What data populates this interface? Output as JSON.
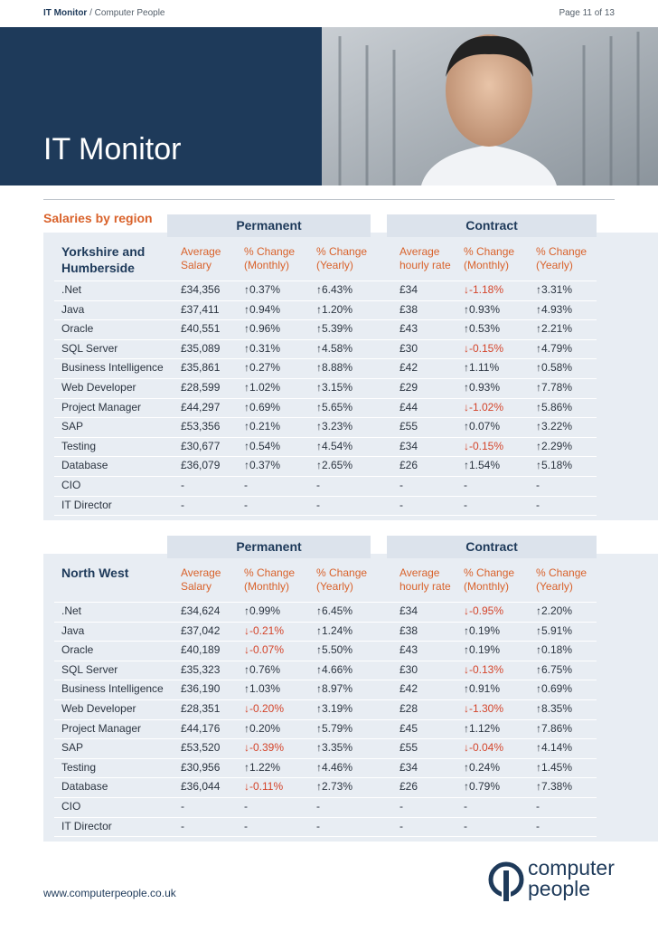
{
  "header": {
    "brand": "IT Monitor",
    "subbrand": "/ Computer People",
    "page": "Page 11 of 13"
  },
  "banner": {
    "title": "IT Monitor"
  },
  "section_title": "Salaries by region",
  "tables": [
    {
      "region": "Yorkshire and Humberside",
      "groups": [
        "Permanent",
        "Contract"
      ],
      "columns": [
        "Average Salary",
        "% Change (Monthly)",
        "% Change (Yearly)",
        "Average hourly rate",
        "% Change (Monthly)",
        "% Change (Yearly)"
      ],
      "rows": [
        [
          ".Net",
          "£34,356",
          "↑0.37%",
          "↑6.43%",
          "£34",
          "↓-1.18%",
          "↑3.31%"
        ],
        [
          "Java",
          "£37,411",
          "↑0.94%",
          "↑1.20%",
          "£38",
          "↑0.93%",
          "↑4.93%"
        ],
        [
          "Oracle",
          "£40,551",
          "↑0.96%",
          "↑5.39%",
          "£43",
          "↑0.53%",
          "↑2.21%"
        ],
        [
          "SQL Server",
          "£35,089",
          "↑0.31%",
          "↑4.58%",
          "£30",
          "↓-0.15%",
          "↑4.79%"
        ],
        [
          "Business Intelligence",
          "£35,861",
          "↑0.27%",
          "↑8.88%",
          "£42",
          "↑1.11%",
          "↑0.58%"
        ],
        [
          "Web Developer",
          "£28,599",
          "↑1.02%",
          "↑3.15%",
          "£29",
          "↑0.93%",
          "↑7.78%"
        ],
        [
          "Project Manager",
          "£44,297",
          "↑0.69%",
          "↑5.65%",
          "£44",
          "↓-1.02%",
          "↑5.86%"
        ],
        [
          "SAP",
          "£53,356",
          "↑0.21%",
          "↑3.23%",
          "£55",
          "↑0.07%",
          "↑3.22%"
        ],
        [
          "Testing",
          "£30,677",
          "↑0.54%",
          "↑4.54%",
          "£34",
          "↓-0.15%",
          "↑2.29%"
        ],
        [
          "Database",
          "£36,079",
          "↑0.37%",
          "↑2.65%",
          "£26",
          "↑1.54%",
          "↑5.18%"
        ],
        [
          "CIO",
          "-",
          "-",
          "-",
          "-",
          "-",
          "-"
        ],
        [
          "IT Director",
          "-",
          "-",
          "-",
          "-",
          "-",
          "-"
        ]
      ]
    },
    {
      "region": "North West",
      "groups": [
        "Permanent",
        "Contract"
      ],
      "columns": [
        "Average Salary",
        "% Change (Monthly)",
        "% Change (Yearly)",
        "Average hourly rate",
        "% Change (Monthly)",
        "% Change (Yearly)"
      ],
      "rows": [
        [
          ".Net",
          "£34,624",
          "↑0.99%",
          "↑6.45%",
          "£34",
          "↓-0.95%",
          "↑2.20%"
        ],
        [
          "Java",
          "£37,042",
          "↓-0.21%",
          "↑1.24%",
          "£38",
          "↑0.19%",
          "↑5.91%"
        ],
        [
          "Oracle",
          "£40,189",
          "↓-0.07%",
          "↑5.50%",
          "£43",
          "↑0.19%",
          "↑0.18%"
        ],
        [
          "SQL Server",
          "£35,323",
          "↑0.76%",
          "↑4.66%",
          "£30",
          "↓-0.13%",
          "↑6.75%"
        ],
        [
          "Business Intelligence",
          "£36,190",
          "↑1.03%",
          "↑8.97%",
          "£42",
          "↑0.91%",
          "↑0.69%"
        ],
        [
          "Web Developer",
          "£28,351",
          "↓-0.20%",
          "↑3.19%",
          "£28",
          "↓-1.30%",
          "↑8.35%"
        ],
        [
          "Project Manager",
          "£44,176",
          "↑0.20%",
          "↑5.79%",
          "£45",
          "↑1.12%",
          "↑7.86%"
        ],
        [
          "SAP",
          "£53,520",
          "↓-0.39%",
          "↑3.35%",
          "£55",
          "↓-0.04%",
          "↑4.14%"
        ],
        [
          "Testing",
          "£30,956",
          "↑1.22%",
          "↑4.46%",
          "£34",
          "↑0.24%",
          "↑1.45%"
        ],
        [
          "Database",
          "£36,044",
          "↓-0.11%",
          "↑2.73%",
          "£26",
          "↑0.79%",
          "↑7.38%"
        ],
        [
          "CIO",
          "-",
          "-",
          "-",
          "-",
          "-",
          "-"
        ],
        [
          "IT Director",
          "-",
          "-",
          "-",
          "-",
          "-",
          "-"
        ]
      ]
    }
  ],
  "footer": {
    "url": "www.computerpeople.co.uk",
    "logo_line1": "computer",
    "logo_line2": "people"
  }
}
